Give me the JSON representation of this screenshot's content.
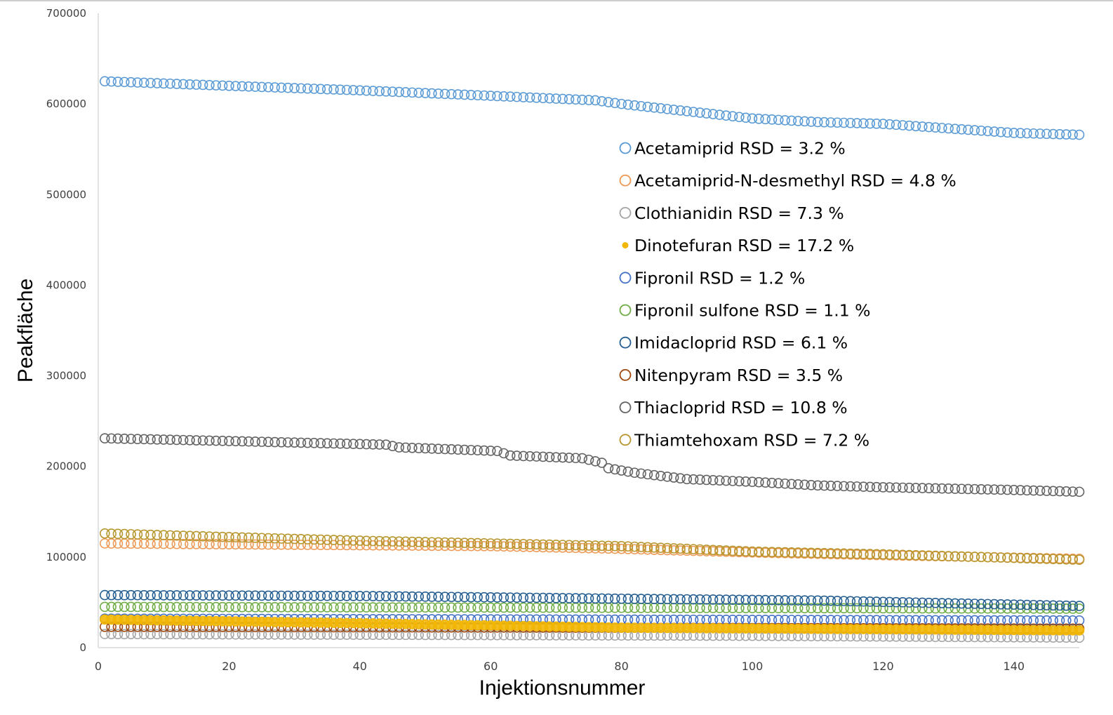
{
  "chart_data": {
    "type": "scatter",
    "xlabel": "Injektionsnummer",
    "ylabel": "Peakfläche",
    "xlim": [
      0,
      150
    ],
    "ylim": [
      0,
      700000
    ],
    "x_ticks": [
      0,
      20,
      40,
      60,
      80,
      100,
      120,
      140
    ],
    "y_ticks": [
      0,
      100000,
      200000,
      300000,
      400000,
      500000,
      600000,
      700000
    ],
    "x_tick_labels": [
      "0",
      "20",
      "40",
      "60",
      "80",
      "100",
      "120",
      "140"
    ],
    "y_tick_labels": [
      "0",
      "100000",
      "200000",
      "300000",
      "400000",
      "500000",
      "600000",
      "700000"
    ],
    "grid": false,
    "legend_position": "center-right",
    "x_values": "injection numbers 1 to 150",
    "series": [
      {
        "name": "Acetamiprid RSD = 3.2 %",
        "color": "#5b9bd5",
        "marker": "open-circle",
        "knots": [
          [
            1,
            625000
          ],
          [
            20,
            620000
          ],
          [
            40,
            615000
          ],
          [
            60,
            609000
          ],
          [
            76,
            604000
          ],
          [
            80,
            600000
          ],
          [
            90,
            592000
          ],
          [
            100,
            584000
          ],
          [
            110,
            580000
          ],
          [
            120,
            578000
          ],
          [
            130,
            573000
          ],
          [
            140,
            568000
          ],
          [
            150,
            566000
          ]
        ]
      },
      {
        "name": "Acetamiprid-N-desmethyl RSD = 4.8 %",
        "color": "#ed9a57",
        "marker": "open-circle",
        "knots": [
          [
            1,
            115000
          ],
          [
            40,
            113000
          ],
          [
            60,
            112000
          ],
          [
            80,
            109000
          ],
          [
            100,
            105000
          ],
          [
            120,
            102000
          ],
          [
            150,
            98000
          ]
        ]
      },
      {
        "name": "Clothianidin RSD = 7.3 %",
        "color": "#a5a5a5",
        "marker": "open-circle",
        "knots": [
          [
            1,
            15000
          ],
          [
            50,
            14000
          ],
          [
            100,
            13000
          ],
          [
            150,
            11000
          ]
        ]
      },
      {
        "name": "Dinotefuran RSD = 17.2 %",
        "color": "#f2b705",
        "marker": "filled-circle",
        "knots": [
          [
            1,
            31000
          ],
          [
            40,
            27000
          ],
          [
            80,
            22000
          ],
          [
            150,
            19000
          ]
        ]
      },
      {
        "name": "Fipronil RSD = 1.2 %",
        "color": "#4472c4",
        "marker": "open-circle",
        "knots": [
          [
            1,
            32000
          ],
          [
            75,
            31000
          ],
          [
            150,
            30000
          ]
        ]
      },
      {
        "name": "Fipronil sulfone RSD = 1.1 %",
        "color": "#70ad47",
        "marker": "open-circle",
        "knots": [
          [
            1,
            45000
          ],
          [
            75,
            44000
          ],
          [
            150,
            43000
          ]
        ]
      },
      {
        "name": "Imidacloprid RSD = 6.1 %",
        "color": "#255e91",
        "marker": "open-circle",
        "knots": [
          [
            1,
            58000
          ],
          [
            40,
            57000
          ],
          [
            80,
            54000
          ],
          [
            110,
            52000
          ],
          [
            150,
            46000
          ]
        ]
      },
      {
        "name": "Nitenpyram RSD = 3.5 %",
        "color": "#9e480e",
        "marker": "open-circle",
        "knots": [
          [
            1,
            23000
          ],
          [
            75,
            22000
          ],
          [
            150,
            21000
          ]
        ]
      },
      {
        "name": "Thiacloprid RSD = 10.8 %",
        "color": "#636363",
        "marker": "open-circle",
        "knots": [
          [
            1,
            231000
          ],
          [
            20,
            228000
          ],
          [
            44,
            224000
          ],
          [
            46,
            221000
          ],
          [
            61,
            217000
          ],
          [
            63,
            212000
          ],
          [
            74,
            209000
          ],
          [
            77,
            204000
          ],
          [
            78,
            198000
          ],
          [
            82,
            193000
          ],
          [
            90,
            186000
          ],
          [
            100,
            183000
          ],
          [
            110,
            179000
          ],
          [
            120,
            177000
          ],
          [
            140,
            174000
          ],
          [
            150,
            172000
          ]
        ]
      },
      {
        "name": "Thiamtehoxam RSD = 7.2 %",
        "color": "#b8962e",
        "marker": "open-circle",
        "knots": [
          [
            1,
            126000
          ],
          [
            20,
            122000
          ],
          [
            40,
            118000
          ],
          [
            60,
            115000
          ],
          [
            80,
            112000
          ],
          [
            100,
            106000
          ],
          [
            120,
            103000
          ],
          [
            150,
            97000
          ]
        ]
      }
    ]
  }
}
